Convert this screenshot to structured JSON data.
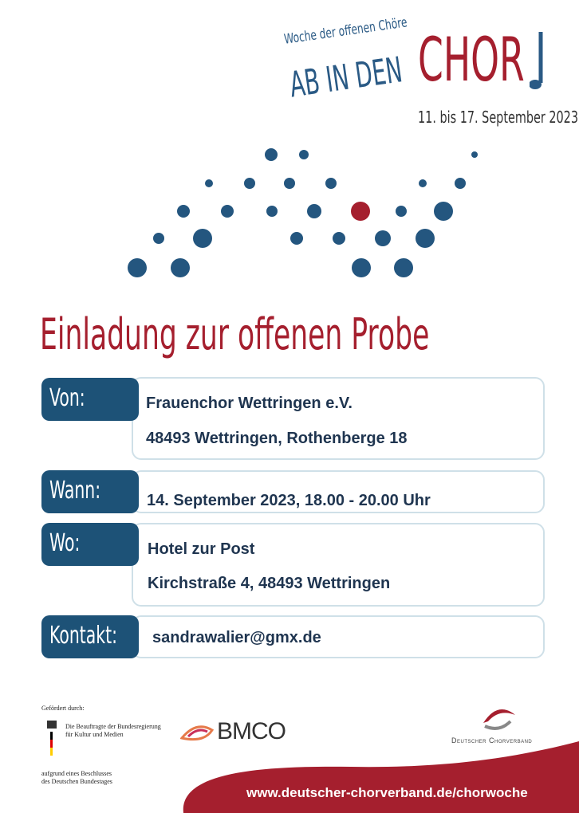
{
  "header": {
    "tagline": "Woche der offenen Chöre",
    "brand_left": "AB IN DEN",
    "brand_right": "CHOR",
    "dates": "11. bis 17. September 2023"
  },
  "title": "Einladung zur offenen Probe",
  "rows": [
    {
      "label": "Von:",
      "lines": [
        "Frauenchor Wettringen e.V.",
        "48493 Wettringen, Rothenberge 18"
      ]
    },
    {
      "label": "Wann:",
      "lines": [
        "14. September 2023, 18.00 - 20.00 Uhr"
      ]
    },
    {
      "label": "Wo:",
      "lines": [
        "Hotel zur Post",
        "Kirchstraße 4, 48493 Wettringen"
      ]
    },
    {
      "label": "Kontakt:",
      "lines": [
        "sandrawalier@gmx.de"
      ]
    }
  ],
  "footer": {
    "funded_by": "Gefördert durch:",
    "bkm_lines": [
      "Die Beauftragte der Bundesregierung",
      "für Kultur und Medien"
    ],
    "decision_lines": [
      "aufgrund eines Beschlusses",
      "des Deutschen Bundestages"
    ],
    "bmco": "BMCO",
    "dcv": "Deutscher Chorverband",
    "url": "www.deutscher-chorverband.de/chorwoche"
  }
}
